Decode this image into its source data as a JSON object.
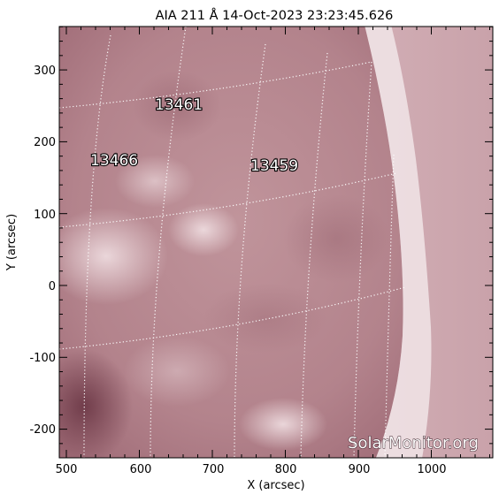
{
  "title": "AIA 211 Å 14-Oct-2023 23:23:45.626",
  "xlabel": "X (arcsec)",
  "ylabel": "Y (arcsec)",
  "x_ticks": [
    "500",
    "600",
    "700",
    "800",
    "900",
    "1000"
  ],
  "y_ticks": [
    "300",
    "200",
    "100",
    "0",
    "-100",
    "-200"
  ],
  "regions": [
    "13461",
    "13466",
    "13459"
  ],
  "watermark": "SolarMonitor.org",
  "colors": {
    "disk": "#b9858e",
    "disk_dark": "#7a4453",
    "limb_bright": "#f1e5e7",
    "corona": "#d9b4bc",
    "grid": "#ffffff",
    "axis": "#000000"
  }
}
